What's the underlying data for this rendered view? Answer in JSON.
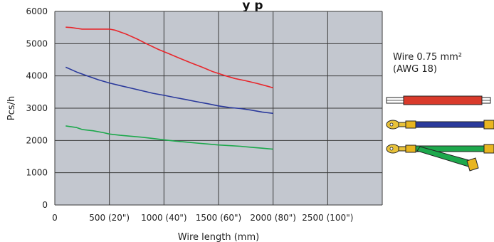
{
  "chart_data": {
    "type": "line",
    "title": "y p",
    "xlabel": "Wire length (mm)",
    "ylabel": "Pcs/h",
    "xlim": [
      0,
      3000
    ],
    "ylim": [
      0,
      6000
    ],
    "x_ticks": [
      {
        "value": 0,
        "label": "0"
      },
      {
        "value": 500,
        "label": "500 (20\")"
      },
      {
        "value": 1000,
        "label": "1000 (40\")"
      },
      {
        "value": 1500,
        "label": "1500 (60\")"
      },
      {
        "value": 2000,
        "label": "2000 (80\")"
      },
      {
        "value": 2500,
        "label": "2500 (100\")"
      }
    ],
    "y_ticks": [
      {
        "value": 0,
        "label": "0"
      },
      {
        "value": 1000,
        "label": "1000"
      },
      {
        "value": 2000,
        "label": "2000"
      },
      {
        "value": 3000,
        "label": "3000"
      },
      {
        "value": 4000,
        "label": "4000"
      },
      {
        "value": 5000,
        "label": "5000"
      },
      {
        "value": 6000,
        "label": "6000"
      }
    ],
    "grid": true,
    "series": [
      {
        "color": "#e8262b",
        "x": [
          100,
          150,
          250,
          350,
          450,
          500,
          550,
          650,
          750,
          850,
          950,
          1050,
          1150,
          1250,
          1350,
          1400,
          1450,
          1550,
          1650,
          1750,
          1850,
          1950,
          2000
        ],
        "y": [
          5510,
          5500,
          5450,
          5450,
          5450,
          5450,
          5420,
          5300,
          5150,
          4980,
          4820,
          4680,
          4540,
          4400,
          4270,
          4200,
          4130,
          4020,
          3920,
          3850,
          3770,
          3680,
          3630
        ]
      },
      {
        "color": "#2b3a9c",
        "x": [
          100,
          200,
          300,
          400,
          500,
          600,
          700,
          800,
          900,
          1000,
          1100,
          1200,
          1300,
          1400,
          1500,
          1600,
          1700,
          1800,
          1900,
          2000
        ],
        "y": [
          4270,
          4120,
          4000,
          3880,
          3780,
          3700,
          3620,
          3540,
          3460,
          3400,
          3330,
          3270,
          3200,
          3140,
          3070,
          3020,
          2990,
          2940,
          2880,
          2840
        ]
      },
      {
        "color": "#1da84c",
        "x": [
          100,
          200,
          250,
          350,
          450,
          500,
          600,
          700,
          800,
          900,
          1000,
          1100,
          1200,
          1300,
          1400,
          1500,
          1600,
          1700,
          1800,
          1900,
          2000
        ],
        "y": [
          2450,
          2400,
          2340,
          2300,
          2240,
          2200,
          2160,
          2130,
          2100,
          2060,
          2020,
          1980,
          1950,
          1920,
          1890,
          1860,
          1840,
          1820,
          1790,
          1760,
          1730
        ]
      }
    ],
    "legend": {
      "line1": "Wire 0.75 mm²",
      "line2": "(AWG 18)",
      "placement": "right"
    },
    "colors": {
      "plot_background": "#c3c7cf",
      "grid": "#3a3a3a"
    }
  }
}
